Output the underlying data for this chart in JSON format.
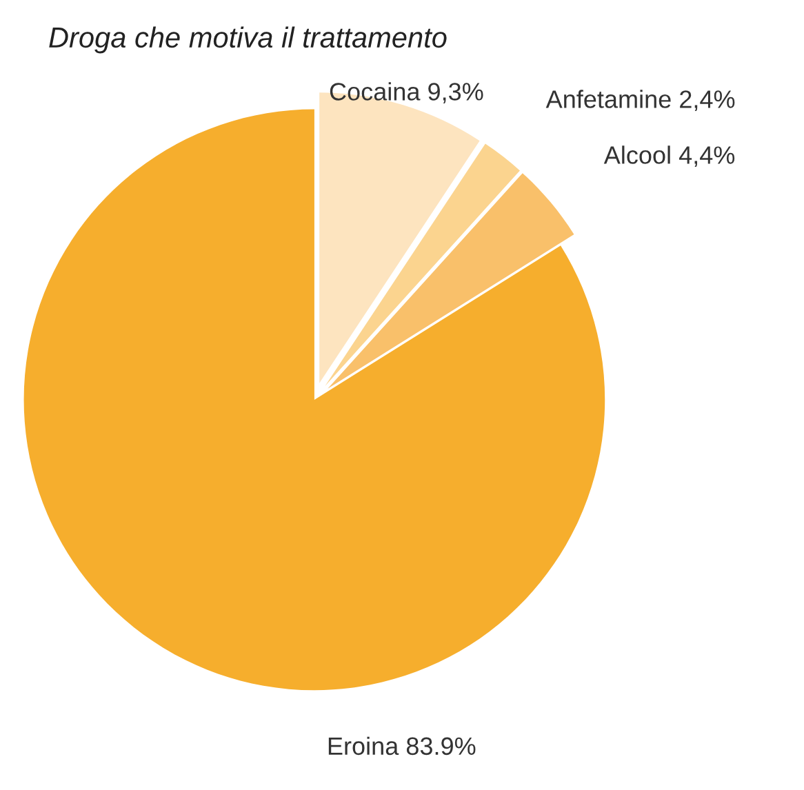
{
  "chart_data": {
    "type": "pie",
    "title": "Droga che motiva il trattamento",
    "categories": [
      "Cocaina",
      "Anfetamine",
      "Alcool",
      "Eroina"
    ],
    "values": [
      9.3,
      2.4,
      4.4,
      83.9
    ],
    "value_labels": [
      "9,3%",
      "2,4%",
      "4,4%",
      "83.9%"
    ],
    "colors": [
      "#fde4bf",
      "#fbd48f",
      "#f9c06a",
      "#f6ae2d"
    ],
    "legend": false
  }
}
